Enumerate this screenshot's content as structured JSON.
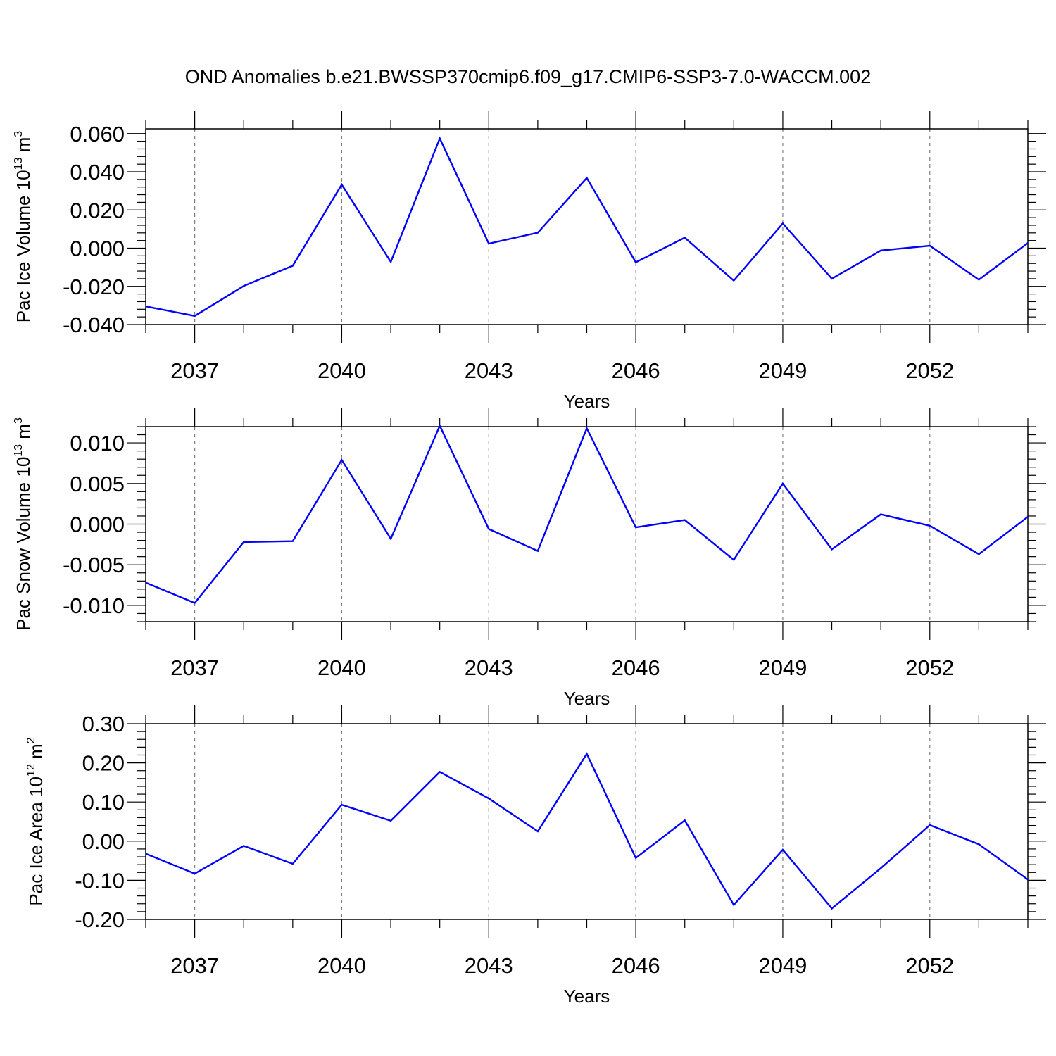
{
  "title": "OND Anomalies b.e21.BWSSP370cmip6.f09_g17.CMIP6-SSP3-7.0-WACCM.002",
  "colors": {
    "line": "#0000ff",
    "axis": "#000000",
    "grid": "#808080"
  },
  "chart_data": [
    {
      "type": "line",
      "ylabel": {
        "main": "Pac Ice Volume 10",
        "exp": "13",
        "unit": " m",
        "unit_exp": "3"
      },
      "xlabel": "Years",
      "x": [
        2036,
        2037,
        2038,
        2039,
        2040,
        2041,
        2042,
        2043,
        2044,
        2045,
        2046,
        2047,
        2048,
        2049,
        2050,
        2051,
        2052,
        2053,
        2054
      ],
      "values": [
        -0.0305,
        -0.0355,
        -0.0198,
        -0.0092,
        0.0333,
        -0.0072,
        0.0575,
        0.0024,
        0.0081,
        0.0368,
        -0.0074,
        0.0055,
        -0.017,
        0.013,
        -0.016,
        -0.0012,
        0.0013,
        -0.0165,
        0.0027
      ],
      "xlim": [
        2036,
        2054
      ],
      "ylim": [
        -0.04,
        0.0625
      ],
      "yticks": [
        -0.04,
        -0.02,
        0.0,
        0.02,
        0.04,
        0.06
      ],
      "ytick_labels": [
        "-0.040",
        "-0.020",
        "0.000",
        "0.020",
        "0.040",
        "0.060"
      ],
      "xticks": [
        2037,
        2040,
        2043,
        2046,
        2049,
        2052
      ],
      "xtick_labels": [
        "2037",
        "2040",
        "2043",
        "2046",
        "2049",
        "2052"
      ],
      "grid": "vertical dashed at major x ticks"
    },
    {
      "type": "line",
      "ylabel": {
        "main": "Pac Snow Volume 10",
        "exp": "13",
        "unit": " m",
        "unit_exp": "3"
      },
      "xlabel": "Years",
      "x": [
        2036,
        2037,
        2038,
        2039,
        2040,
        2041,
        2042,
        2043,
        2044,
        2045,
        2046,
        2047,
        2048,
        2049,
        2050,
        2051,
        2052,
        2053,
        2054
      ],
      "values": [
        -0.0072,
        -0.0097,
        -0.0022,
        -0.0021,
        0.0079,
        -0.0018,
        0.0121,
        -0.0006,
        -0.0033,
        0.0118,
        -0.0004,
        0.0005,
        -0.0044,
        0.005,
        -0.0031,
        0.0012,
        -0.0002,
        -0.0037,
        0.0009
      ],
      "xlim": [
        2036,
        2054
      ],
      "ylim": [
        -0.012,
        0.012
      ],
      "yticks": [
        -0.01,
        -0.005,
        0.0,
        0.005,
        0.01
      ],
      "ytick_labels": [
        "-0.010",
        "-0.005",
        "0.000",
        "0.005",
        "0.010"
      ],
      "xticks": [
        2037,
        2040,
        2043,
        2046,
        2049,
        2052
      ],
      "xtick_labels": [
        "2037",
        "2040",
        "2043",
        "2046",
        "2049",
        "2052"
      ],
      "grid": "vertical dashed at major x ticks"
    },
    {
      "type": "line",
      "ylabel": {
        "main": "Pac Ice Area 10",
        "exp": "12",
        "unit": " m",
        "unit_exp": "2"
      },
      "xlabel": "Years",
      "x": [
        2036,
        2037,
        2038,
        2039,
        2040,
        2041,
        2042,
        2043,
        2044,
        2045,
        2046,
        2047,
        2048,
        2049,
        2050,
        2051,
        2052,
        2053,
        2054
      ],
      "values": [
        -0.032,
        -0.083,
        -0.012,
        -0.058,
        0.093,
        0.052,
        0.177,
        0.109,
        0.025,
        0.223,
        -0.043,
        0.053,
        -0.163,
        -0.022,
        -0.172,
        -0.069,
        0.041,
        -0.008,
        -0.098
      ],
      "xlim": [
        2036,
        2054
      ],
      "ylim": [
        -0.2,
        0.3
      ],
      "yticks": [
        -0.2,
        -0.1,
        0.0,
        0.1,
        0.2,
        0.3
      ],
      "ytick_labels": [
        "-0.20",
        "-0.10",
        "0.00",
        "0.10",
        "0.20",
        "0.30"
      ],
      "xticks": [
        2037,
        2040,
        2043,
        2046,
        2049,
        2052
      ],
      "xtick_labels": [
        "2037",
        "2040",
        "2043",
        "2046",
        "2049",
        "2052"
      ],
      "grid": "vertical dashed at major x ticks"
    }
  ]
}
